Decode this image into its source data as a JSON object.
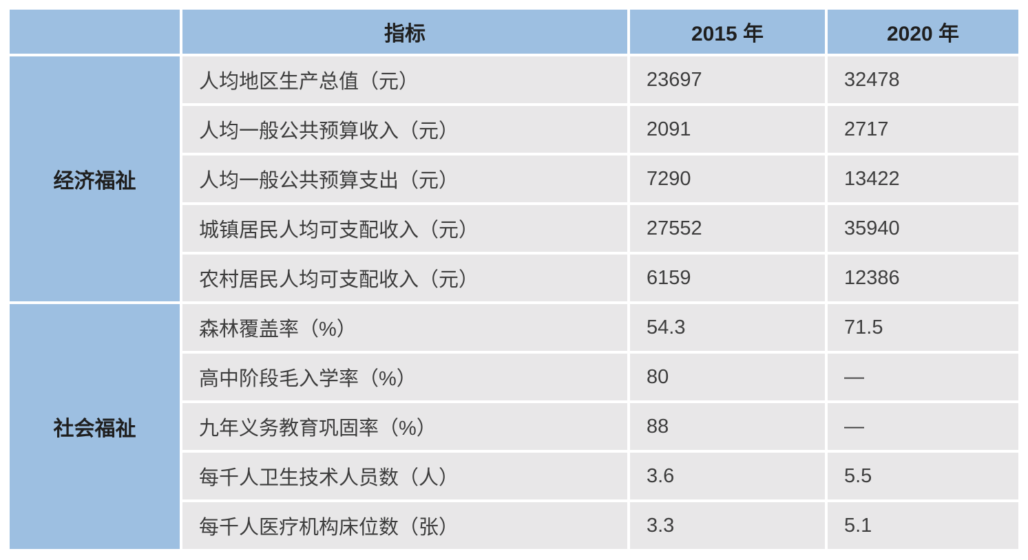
{
  "chart_data": {
    "type": "table",
    "columns": [
      "",
      "指标",
      "2015 年",
      "2020 年"
    ],
    "groups": [
      {
        "label": "经济福祉",
        "rows": [
          [
            "人均地区生产总值（元）",
            "23697",
            "32478"
          ],
          [
            "人均一般公共预算收入（元）",
            "2091",
            "2717"
          ],
          [
            "人均一般公共预算支出（元）",
            "7290",
            "13422"
          ],
          [
            "城镇居民人均可支配收入（元）",
            "27552",
            "35940"
          ],
          [
            "农村居民人均可支配收入（元）",
            "6159",
            "12386"
          ]
        ]
      },
      {
        "label": "社会福祉",
        "rows": [
          [
            "森林覆盖率（%）",
            "54.3",
            "71.5"
          ],
          [
            "高中阶段毛入学率（%）",
            "80",
            "—"
          ],
          [
            "九年义务教育巩固率（%）",
            "88",
            "—"
          ],
          [
            "每千人卫生技术人员数（人）",
            "3.6",
            "5.5"
          ],
          [
            "每千人医疗机构床位数（张）",
            "3.3",
            "5.1"
          ]
        ]
      }
    ],
    "layout": {
      "banded_rows": false,
      "grid": "white-gaps",
      "header_position": "top"
    }
  },
  "colors": {
    "header_bg": "#9DBFE1",
    "group_bg": "#9DBFE1",
    "row_bg": "#E8E7E8",
    "gap": "#FFFFFF",
    "header_text": "#1F1F1F",
    "body_text": "#3D3D3D"
  }
}
